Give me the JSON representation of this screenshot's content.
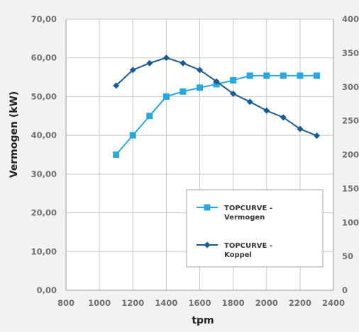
{
  "chart_data": {
    "type": "line",
    "xlabel": "tpm",
    "ylabel": "Vermogen (kW)",
    "xlim": [
      800,
      2400
    ],
    "ylim": [
      0,
      70
    ],
    "y2lim": [
      0,
      400
    ],
    "x_ticks": [
      "800",
      "1000",
      "1200",
      "1400",
      "1600",
      "1800",
      "2000",
      "2200",
      "2400"
    ],
    "y_ticks": [
      "0,00",
      "10,00",
      "20,00",
      "30,00",
      "40,00",
      "50,00",
      "60,00",
      "70,00"
    ],
    "y2_ticks": [
      "0",
      "50",
      "100",
      "150",
      "200",
      "250",
      "300",
      "350",
      "400"
    ],
    "grid": true,
    "legend_position": "bottom-right",
    "x": [
      1100,
      1200,
      1300,
      1400,
      1500,
      1600,
      1700,
      1800,
      1900,
      2000,
      2100,
      2200,
      2300
    ],
    "series": [
      {
        "name_lines": [
          "TOPCURVE -",
          "Vermogen"
        ],
        "axis": "left",
        "marker": "square",
        "color": "#29a8df",
        "values": [
          35.0,
          40.0,
          45.0,
          50.0,
          51.3,
          52.3,
          53.2,
          54.2,
          55.4,
          55.4,
          55.4,
          55.4,
          55.4
        ]
      },
      {
        "name_lines": [
          "TOPCURVE -",
          "Koppel"
        ],
        "axis": "right",
        "marker": "diamond",
        "color": "#1a5a93",
        "values": [
          302,
          325,
          335,
          343,
          335,
          325,
          308,
          290,
          278,
          265,
          255,
          238,
          228
        ]
      }
    ]
  }
}
